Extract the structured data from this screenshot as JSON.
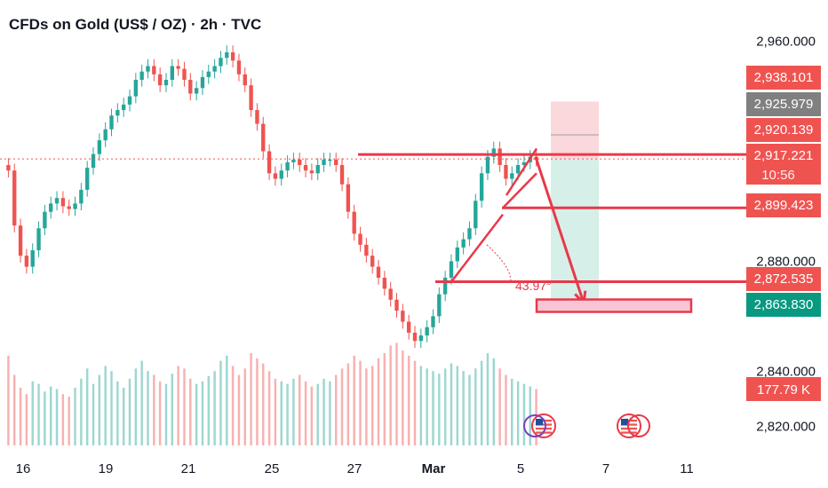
{
  "header": {
    "title": "CFDs on Gold (US$ / OZ) · 2h · TVC"
  },
  "colors": {
    "up": "#26a69a",
    "down": "#ef5350",
    "drawing": "#e8394a",
    "target_zone": "#d6efe9",
    "stop_zone": "#fbd8dc",
    "box_fill": "#f6c6d6"
  },
  "chart_data": {
    "type": "candlestick",
    "title": "CFDs on Gold (US$ / OZ) · 2h · TVC",
    "y_ticks": [
      "2,960.000",
      "2,880.000",
      "2,840.000",
      "2,820.000"
    ],
    "y_tick_values": [
      2960,
      2880,
      2840,
      2820
    ],
    "ylim": [
      2813,
      2966
    ],
    "x_ticks": [
      "16",
      "19",
      "21",
      "25",
      "27",
      "Mar",
      "5",
      "7",
      "11"
    ],
    "x_tick_bold": "Mar",
    "price_tags": [
      {
        "label": "2,938.101",
        "value": 2938.101,
        "color": "#ef5350"
      },
      {
        "label": "2,925.979",
        "value": 2925.979,
        "color": "#808080"
      },
      {
        "label": "2,920.139",
        "value": 2920.139,
        "color": "#ef5350"
      },
      {
        "label": "2,917.221",
        "value": 2917.221,
        "color": "#ef5350",
        "countdown": "10:56"
      },
      {
        "label": "2,899.423",
        "value": 2899.423,
        "color": "#ef5350"
      },
      {
        "label": "2,872.535",
        "value": 2872.535,
        "color": "#ef5350"
      },
      {
        "label": "2,863.830",
        "value": 2863.83,
        "color": "#089981"
      }
    ],
    "volume_tag": {
      "label": "177.79 K",
      "color": "#ef5350"
    },
    "current_price": 2917.221,
    "angle_annotation": "43.97°",
    "series": [
      {
        "name": "close",
        "values": [
          2913,
          2893,
          2882,
          2878,
          2884,
          2892,
          2898,
          2901,
          2903,
          2900,
          2899,
          2901,
          2906,
          2914,
          2919,
          2924,
          2928,
          2933,
          2935,
          2937,
          2940,
          2946,
          2949,
          2951,
          2948,
          2944,
          2946,
          2951,
          2950,
          2946,
          2941,
          2943,
          2947,
          2949,
          2951,
          2954,
          2956,
          2953,
          2948,
          2944,
          2935,
          2930,
          2920,
          2912,
          2910,
          2913,
          2916,
          2917,
          2915,
          2913,
          2912,
          2915,
          2917,
          2917,
          2915,
          2908,
          2898,
          2890,
          2886,
          2882,
          2878,
          2874,
          2870,
          2866,
          2862,
          2858,
          2854,
          2851,
          2853,
          2856,
          2860,
          2868,
          2874,
          2880,
          2885,
          2888,
          2892,
          2902,
          2912,
          2918,
          2921,
          2915,
          2910,
          2912,
          2915,
          2916,
          2918,
          2917
        ]
      },
      {
        "name": "volume",
        "values": [
          70,
          55,
          45,
          40,
          50,
          48,
          42,
          46,
          44,
          40,
          38,
          45,
          52,
          60,
          48,
          55,
          62,
          58,
          50,
          45,
          52,
          60,
          66,
          58,
          55,
          50,
          48,
          56,
          62,
          60,
          52,
          48,
          50,
          54,
          58,
          66,
          70,
          62,
          55,
          60,
          72,
          68,
          64,
          58,
          52,
          50,
          48,
          52,
          55,
          50,
          46,
          48,
          52,
          50,
          55,
          60,
          64,
          70,
          66,
          60,
          62,
          68,
          72,
          78,
          80,
          74,
          70,
          66,
          62,
          60,
          58,
          56,
          60,
          64,
          62,
          58,
          55,
          60,
          66,
          72,
          68,
          60,
          55,
          52,
          50,
          48,
          46,
          44
        ]
      }
    ],
    "volume_ylim": [
      0,
      90
    ],
    "drawings": {
      "horizontal_lines": [
        2917.221,
        2899.423,
        2872.535
      ],
      "trend_arrow": {
        "from": 2917.221,
        "to": 2863.83
      },
      "target_box": 2863.83
    }
  }
}
